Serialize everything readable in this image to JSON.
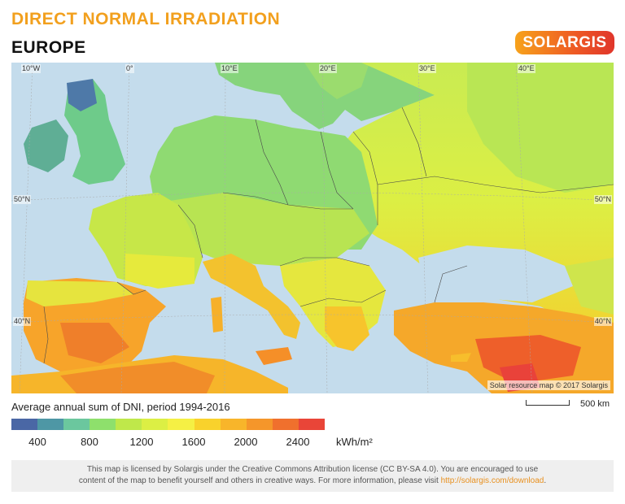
{
  "title": "DIRECT NORMAL IRRADIATION",
  "subtitle": "EUROPE",
  "logo": {
    "text": "SOLARGIS"
  },
  "map": {
    "grid_labels": {
      "lon": [
        "10°W",
        "0°",
        "10°E",
        "20°E",
        "30°E",
        "40°E"
      ],
      "lat_left": [
        "50°N",
        "40°N"
      ],
      "lat_right": [
        "50°N",
        "40°N"
      ]
    },
    "credit": "Solar resource map © 2017 Solargis",
    "colors": {
      "sea": "#c4dcec",
      "land_north": "#7cd089",
      "land_central": "#a8e070",
      "land_green_yellow": "#d8ee4c",
      "land_south": "#f6c02a",
      "land_hot": "#f59a26",
      "land_very_hot": "#ee5a2a",
      "mountain_blue": "#4e79a8",
      "borders": "#4a4a4a"
    }
  },
  "legend": {
    "title": "Average annual sum of DNI, period 1994-2016",
    "colors": [
      "#4a67a5",
      "#4e97a5",
      "#6bc79e",
      "#8ee06c",
      "#bfe84a",
      "#dcef44",
      "#f5f044",
      "#f9d22c",
      "#f8b52a",
      "#f5962a",
      "#f0702d",
      "#e94538"
    ],
    "ticks": [
      "400",
      "800",
      "1200",
      "1600",
      "2000",
      "2400"
    ],
    "unit": "kWh/m²"
  },
  "scale_bar": {
    "label": "500 km"
  },
  "license": {
    "line1": "This map is licensed by Solargis under the Creative Commons Attribution license (CC BY-SA 4.0). You are encouraged to use",
    "line2_prefix": "content of the map to benefit yourself and others in creative ways. For more information, please visit",
    "link": "http://solargis.com/download",
    "line2_suffix": "."
  }
}
